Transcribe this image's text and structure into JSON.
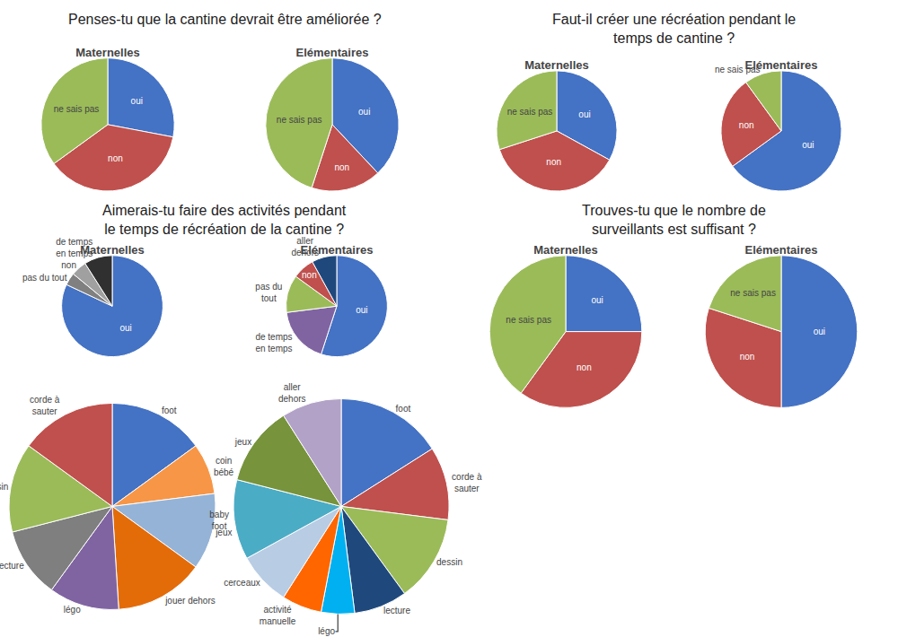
{
  "chart_data": [
    {
      "type": "pie",
      "title": "Penses-tu que la cantine devrait être améliorée ?",
      "subtitle": "Maternelles",
      "categories": [
        "oui",
        "non",
        "ne sais pas"
      ],
      "values": [
        28,
        37,
        35
      ],
      "colors": [
        "#4472C4",
        "#C0504D",
        "#9BBB59"
      ]
    },
    {
      "type": "pie",
      "subtitle": "Elémentaires",
      "categories": [
        "oui",
        "non",
        "ne sais pas"
      ],
      "values": [
        38,
        17,
        45
      ],
      "colors": [
        "#4472C4",
        "#C0504D",
        "#9BBB59"
      ]
    },
    {
      "type": "pie",
      "title": "Faut-il créer une récréation pendant le\ntemps de cantine ?",
      "subtitle": "Maternelles",
      "categories": [
        "oui",
        "non",
        "ne sais pas"
      ],
      "values": [
        33,
        37,
        30
      ],
      "colors": [
        "#4472C4",
        "#C0504D",
        "#9BBB59"
      ]
    },
    {
      "type": "pie",
      "subtitle": "Elémentaires",
      "categories": [
        "oui",
        "non",
        "ne sais pas"
      ],
      "values": [
        65,
        25,
        10
      ],
      "colors": [
        "#4472C4",
        "#C0504D",
        "#9BBB59"
      ]
    },
    {
      "type": "pie",
      "title": "Aimerais-tu faire des activités pendant\nle temps de récréation de la cantine ?",
      "subtitle": "Maternelles",
      "categories": [
        "oui",
        "pas du tout",
        "non",
        "de temps\nen temps"
      ],
      "values": [
        82,
        4,
        5,
        9
      ],
      "colors": [
        "#4472C4",
        "#808080",
        "#A0A0A0",
        "#303030"
      ]
    },
    {
      "type": "pie",
      "subtitle": "Elémentaires",
      "categories": [
        "oui",
        "de temps\nen temps",
        "pas du\ntout",
        "non",
        "aller\ndehors"
      ],
      "values": [
        55,
        18,
        12,
        7,
        8
      ],
      "colors": [
        "#4472C4",
        "#8064A2",
        "#9BBB59",
        "#C0504D",
        "#1F497D"
      ]
    },
    {
      "type": "pie",
      "categories": [
        "foot",
        "coin\nbébé",
        "jeux",
        "jouer dehors",
        "légo",
        "lecture",
        "dessin",
        "corde à\nsauter"
      ],
      "values": [
        15,
        8,
        12,
        14,
        11,
        11,
        14,
        15
      ],
      "colors": [
        "#4472C4",
        "#F79646",
        "#95B3D7",
        "#E36C09",
        "#8064A2",
        "#7F7F7F",
        "#9BBB59",
        "#C0504D"
      ]
    },
    {
      "type": "pie",
      "categories": [
        "foot",
        "corde à\nsauter",
        "dessin",
        "lecture",
        "légo",
        "activité\nmanuelle",
        "cerceaux",
        "baby\nfoot",
        "jeux",
        "aller\ndehors"
      ],
      "values": [
        16,
        11,
        13,
        8,
        5,
        6,
        8,
        12,
        12,
        9
      ],
      "colors": [
        "#4472C4",
        "#C0504D",
        "#9BBB59",
        "#1F497D",
        "#00B0F0",
        "#FF6600",
        "#B8CCE4",
        "#4BACC6",
        "#77933C",
        "#B2A2C7"
      ]
    },
    {
      "type": "pie",
      "title": "Trouves-tu que le nombre de\nsurveillants est suffisant ?",
      "subtitle": "Maternelles",
      "categories": [
        "oui",
        "non",
        "ne sais pas"
      ],
      "values": [
        25,
        35,
        40
      ],
      "colors": [
        "#4472C4",
        "#C0504D",
        "#9BBB59"
      ]
    },
    {
      "type": "pie",
      "subtitle": "Elémentaires",
      "categories": [
        "oui",
        "non",
        "ne sais pas"
      ],
      "values": [
        50,
        30,
        20
      ],
      "colors": [
        "#4472C4",
        "#C0504D",
        "#9BBB59"
      ]
    }
  ]
}
